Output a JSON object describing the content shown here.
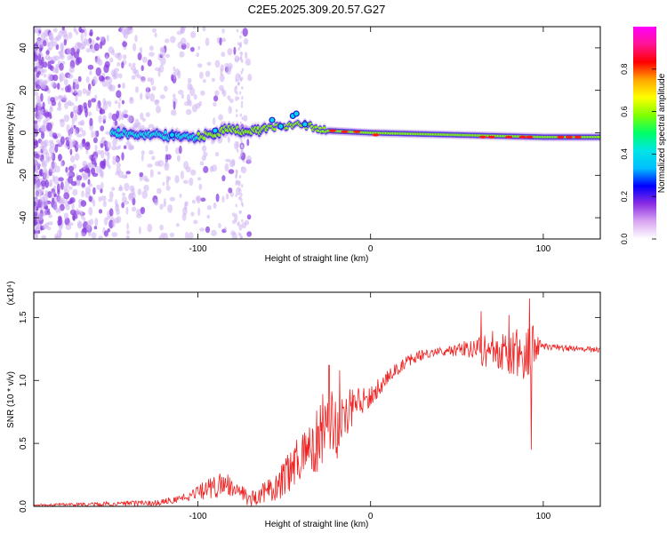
{
  "title": "C2E5.2025.309.20.57.G27",
  "chart_data": [
    {
      "type": "heatmap",
      "title": "C2E5.2025.309.20.57.G27",
      "xlabel": "Height of straight line (km)",
      "ylabel": "Frequency (Hz)",
      "xlim": [
        -195,
        133
      ],
      "ylim": [
        -50,
        50
      ],
      "xticks": [
        -100,
        0,
        100
      ],
      "yticks": [
        -40,
        -20,
        0,
        20,
        40
      ],
      "colorbar": {
        "label": "Normalized spectral amplitude",
        "range": [
          0,
          1
        ],
        "ticks": [
          "0.0",
          "0.2",
          "0.4",
          "0.6",
          "0.8"
        ],
        "colors": [
          "#ffffff",
          "#d9a6f2",
          "#8a2be2",
          "#0000ff",
          "#00bfff",
          "#00e5e5",
          "#00ff66",
          "#7fff00",
          "#ffff00",
          "#ffa500",
          "#ff0000",
          "#ff1493",
          "#ff00ff"
        ]
      },
      "ridge_path": [
        [
          -150,
          0
        ],
        [
          -100,
          -2
        ],
        [
          -80,
          2
        ],
        [
          -70,
          0
        ],
        [
          -55,
          3
        ],
        [
          -40,
          4
        ],
        [
          -25,
          1
        ],
        [
          0,
          0
        ],
        [
          50,
          -1
        ],
        [
          100,
          -2
        ],
        [
          133,
          -2
        ]
      ]
    },
    {
      "type": "line",
      "series_color": "#ee2222",
      "xlabel": "Height of straight line (km)",
      "ylabel": "SNR (10 * v/v)",
      "multiplier_label": "(x10⁴)",
      "xlim": [
        -195,
        133
      ],
      "ylim": [
        0,
        1.7
      ],
      "xticks": [
        -100,
        0,
        100
      ],
      "yticks": [
        "0.0",
        "0.5",
        "1.0",
        "1.5"
      ],
      "envelope": {
        "x": [
          -195,
          -150,
          -125,
          -110,
          -95,
          -85,
          -75,
          -70,
          -60,
          -50,
          -45,
          -40,
          -35,
          -30,
          -25,
          -20,
          -15,
          -10,
          -5,
          0,
          5,
          10,
          15,
          20,
          25,
          30,
          35,
          40,
          45,
          50,
          55,
          60,
          65,
          70,
          75,
          80,
          85,
          90,
          95,
          100,
          110,
          120,
          133
        ],
        "y": [
          0.01,
          0.02,
          0.03,
          0.06,
          0.13,
          0.18,
          0.12,
          0.05,
          0.12,
          0.22,
          0.32,
          0.38,
          0.48,
          0.56,
          0.62,
          0.66,
          0.72,
          0.78,
          0.84,
          0.88,
          0.95,
          1.02,
          1.08,
          1.14,
          1.18,
          1.2,
          1.22,
          1.23,
          1.24,
          1.24,
          1.25,
          1.25,
          1.25,
          1.24,
          1.23,
          1.22,
          1.22,
          1.24,
          1.27,
          1.27,
          1.26,
          1.25,
          1.24
        ]
      },
      "noise": {
        "x": [
          -195,
          -110,
          -95,
          -85,
          -75,
          -60,
          -45,
          -35,
          -30,
          -25,
          -20,
          -15,
          -10,
          0,
          20,
          40,
          60,
          65,
          75,
          85,
          92,
          96,
          100,
          133
        ],
        "y": [
          0.005,
          0.03,
          0.08,
          0.1,
          0.05,
          0.1,
          0.17,
          0.22,
          0.3,
          0.38,
          0.3,
          0.22,
          0.15,
          0.08,
          0.05,
          0.03,
          0.08,
          0.14,
          0.18,
          0.2,
          0.26,
          0.1,
          0.03,
          0.02
        ]
      },
      "spikes": [
        {
          "x": -24,
          "y": 1.12
        },
        {
          "x": -18,
          "y": 1.08
        },
        {
          "x": -12,
          "y": 0.93
        },
        {
          "x": 64,
          "y": 1.55
        },
        {
          "x": 80,
          "y": 1.52
        },
        {
          "x": 92,
          "y": 1.65
        },
        {
          "x": 93,
          "y": 0.45
        }
      ]
    }
  ]
}
